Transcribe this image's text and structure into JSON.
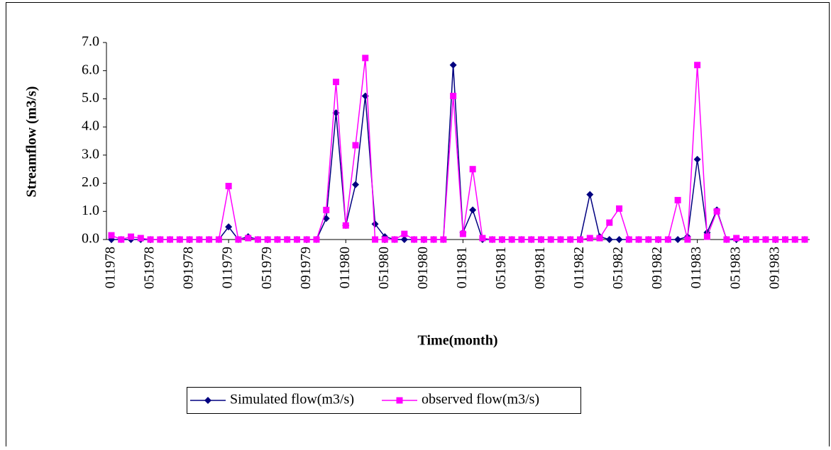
{
  "chart_data": {
    "type": "line",
    "y_label": "Streamflow (m3/s)",
    "x_label": "Time(month)",
    "categories": [
      "011978",
      null,
      null,
      null,
      "051978",
      null,
      null,
      null,
      "091978",
      null,
      null,
      null,
      "011979",
      null,
      null,
      null,
      "051979",
      null,
      null,
      null,
      "091979",
      null,
      null,
      null,
      "011980",
      null,
      null,
      null,
      "051980",
      null,
      null,
      null,
      "091980",
      null,
      null,
      null,
      "011981",
      null,
      null,
      null,
      "051981",
      null,
      null,
      null,
      "091981",
      null,
      null,
      null,
      "011982",
      null,
      null,
      null,
      "051982",
      null,
      null,
      null,
      "091982",
      null,
      null,
      null,
      "011983",
      null,
      null,
      null,
      "051983",
      null,
      null,
      null,
      "091983",
      null,
      null,
      null
    ],
    "series": [
      {
        "name": "Simulated flow(m3/s)",
        "color": "#000080",
        "marker": "diamond",
        "values": [
          0,
          0,
          0,
          0,
          0,
          0,
          0,
          0,
          0,
          0,
          0,
          0,
          0.45,
          0,
          0.1,
          0,
          0,
          0,
          0,
          0,
          0,
          0,
          0.75,
          4.5,
          0.5,
          1.95,
          5.1,
          0.55,
          0.1,
          0,
          0,
          0,
          0,
          0,
          0,
          6.2,
          0.25,
          1.05,
          0,
          0,
          0,
          0,
          0,
          0,
          0,
          0,
          0,
          0,
          0,
          1.6,
          0.1,
          0,
          0,
          0,
          0,
          0,
          0,
          0,
          0,
          0.1,
          2.85,
          0.25,
          1.05,
          0,
          0,
          0,
          0,
          0,
          0,
          0,
          0,
          0
        ]
      },
      {
        "name": "observed flow(m3/s)",
        "color": "#ff00ff",
        "marker": "square",
        "values": [
          0.15,
          0,
          0.1,
          0.05,
          0,
          0,
          0,
          0,
          0,
          0,
          0,
          0,
          1.9,
          0,
          0.05,
          0,
          0,
          0,
          0,
          0,
          0,
          0,
          1.05,
          5.6,
          0.5,
          3.35,
          6.45,
          0,
          0,
          0,
          0.2,
          0,
          0,
          0,
          0,
          5.1,
          0.2,
          2.5,
          0.05,
          0,
          0,
          0,
          0,
          0,
          0,
          0,
          0,
          0,
          0,
          0.05,
          0.05,
          0.6,
          1.1,
          0,
          0,
          0,
          0,
          0,
          1.4,
          0,
          6.2,
          0.1,
          1.0,
          0,
          0.05,
          0,
          0,
          0,
          0,
          0,
          0,
          0
        ]
      }
    ],
    "ylim": [
      0,
      7
    ],
    "yticks": [
      {
        "value": 0,
        "label": "0.0"
      },
      {
        "value": 1,
        "label": "1.0"
      },
      {
        "value": 2,
        "label": "2.0"
      },
      {
        "value": 3,
        "label": "3.0"
      },
      {
        "value": 4,
        "label": "4.0"
      },
      {
        "value": 5,
        "label": "5.0"
      },
      {
        "value": 6,
        "label": "6.0"
      },
      {
        "value": 7,
        "label": "7.0"
      }
    ],
    "grid": false,
    "legend": "bottom"
  }
}
